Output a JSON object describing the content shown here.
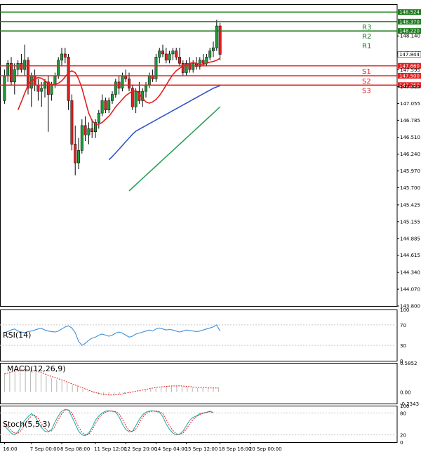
{
  "chart_data": [
    {
      "type": "candlestick",
      "title": "",
      "indicators": [
        "MA fast (red)",
        "MA mid (blue)",
        "MA slow (green)"
      ],
      "ylim": [
        143.8,
        148.65
      ],
      "y_ticks": [
        "148.140",
        "147.865",
        "147.595",
        "147.325",
        "147.055",
        "146.785",
        "146.510",
        "146.240",
        "145.970",
        "145.700",
        "145.425",
        "145.155",
        "144.885",
        "144.615",
        "144.340",
        "144.070",
        "143.800"
      ],
      "x_ticks": [
        "16:00",
        "7 Sep 00:00",
        "8 Sep 08:00",
        "11 Sep 12:00",
        "12 Sep 20:00",
        "14 Sep 04:00",
        "15 Sep 12:00",
        "18 Sep 16:00",
        "20 Sep 00:00"
      ],
      "x_tick_index": [
        0,
        8,
        17,
        27,
        36,
        45,
        54,
        64,
        73
      ],
      "current_price": "147.844",
      "levels": [
        {
          "name": "R3",
          "value": 148.37,
          "label": "148.370",
          "color": "#1a7a1a",
          "show_name": true
        },
        {
          "name": "R2",
          "value": 148.22,
          "label": "148.220",
          "color": "#1a7a1a",
          "show_name": true
        },
        {
          "name": "R1",
          "value": 148.524,
          "label": "148.524",
          "color": "#1a7a1a",
          "show_name": false
        },
        {
          "name": "S1",
          "value": 147.66,
          "label": "147.660",
          "color": "#e02020",
          "show_name": true
        },
        {
          "name": "S2",
          "value": 147.5,
          "label": "147.500",
          "color": "#e02020",
          "show_name": true
        },
        {
          "name": "S3",
          "value": 147.35,
          "label": "147.350",
          "color": "#e02020",
          "show_name": true
        }
      ],
      "level_name_order": [
        "R3",
        "R2",
        "R1",
        "S1",
        "S2",
        "S3"
      ],
      "candles": [
        [
          147.1,
          147.6,
          147.05,
          147.5
        ],
        [
          147.5,
          147.75,
          147.4,
          147.7
        ],
        [
          147.7,
          147.8,
          147.35,
          147.4
        ],
        [
          147.4,
          147.7,
          147.2,
          147.6
        ],
        [
          147.6,
          147.75,
          147.5,
          147.7
        ],
        [
          147.7,
          147.85,
          147.55,
          147.6
        ],
        [
          147.6,
          148.0,
          147.5,
          147.75
        ],
        [
          147.75,
          147.8,
          147.2,
          147.3
        ],
        [
          147.3,
          147.55,
          147.0,
          147.5
        ],
        [
          147.5,
          147.6,
          147.25,
          147.35
        ],
        [
          147.35,
          147.45,
          147.1,
          147.25
        ],
        [
          147.25,
          147.4,
          147.0,
          147.3
        ],
        [
          147.3,
          147.45,
          147.15,
          147.4
        ],
        [
          147.4,
          147.5,
          146.6,
          147.2
        ],
        [
          147.2,
          147.4,
          147.1,
          147.35
        ],
        [
          147.35,
          147.55,
          147.3,
          147.5
        ],
        [
          147.5,
          147.8,
          147.45,
          147.75
        ],
        [
          147.75,
          147.95,
          147.65,
          147.85
        ],
        [
          147.85,
          147.95,
          147.7,
          147.8
        ],
        [
          147.8,
          147.85,
          146.95,
          147.1
        ],
        [
          147.1,
          147.2,
          146.3,
          146.4
        ],
        [
          146.4,
          146.7,
          145.9,
          146.1
        ],
        [
          146.1,
          146.5,
          146.0,
          146.3
        ],
        [
          146.3,
          146.8,
          146.25,
          146.7
        ],
        [
          146.7,
          146.85,
          146.45,
          146.55
        ],
        [
          146.55,
          146.75,
          146.4,
          146.65
        ],
        [
          146.65,
          146.8,
          146.5,
          146.6
        ],
        [
          146.6,
          146.8,
          146.5,
          146.75
        ],
        [
          146.75,
          146.95,
          146.65,
          146.9
        ],
        [
          146.9,
          147.2,
          146.85,
          147.1
        ],
        [
          147.1,
          147.15,
          146.9,
          146.95
        ],
        [
          146.95,
          147.15,
          146.9,
          147.1
        ],
        [
          147.1,
          147.25,
          147.05,
          147.2
        ],
        [
          147.2,
          147.45,
          147.15,
          147.4
        ],
        [
          147.4,
          147.5,
          147.2,
          147.3
        ],
        [
          147.3,
          147.55,
          147.25,
          147.5
        ],
        [
          147.5,
          147.6,
          147.4,
          147.45
        ],
        [
          147.45,
          147.55,
          147.25,
          147.3
        ],
        [
          147.3,
          147.35,
          146.95,
          147.0
        ],
        [
          147.0,
          147.3,
          146.9,
          147.25
        ],
        [
          147.25,
          147.4,
          147.05,
          147.1
        ],
        [
          147.1,
          147.3,
          147.0,
          147.25
        ],
        [
          147.25,
          147.4,
          147.15,
          147.35
        ],
        [
          147.35,
          147.55,
          147.3,
          147.5
        ],
        [
          147.5,
          147.6,
          147.4,
          147.45
        ],
        [
          147.45,
          147.85,
          147.4,
          147.8
        ],
        [
          147.8,
          147.95,
          147.7,
          147.9
        ],
        [
          147.9,
          148.0,
          147.8,
          147.85
        ],
        [
          147.85,
          147.95,
          147.7,
          147.75
        ],
        [
          147.75,
          147.9,
          147.7,
          147.85
        ],
        [
          147.85,
          147.95,
          147.75,
          147.9
        ],
        [
          147.9,
          147.95,
          147.75,
          147.8
        ],
        [
          147.8,
          147.95,
          147.65,
          147.7
        ],
        [
          147.7,
          147.75,
          147.5,
          147.55
        ],
        [
          147.55,
          147.75,
          147.5,
          147.7
        ],
        [
          147.7,
          147.8,
          147.55,
          147.6
        ],
        [
          147.6,
          147.75,
          147.55,
          147.7
        ],
        [
          147.7,
          147.8,
          147.6,
          147.65
        ],
        [
          147.65,
          147.8,
          147.6,
          147.75
        ],
        [
          147.75,
          147.85,
          147.65,
          147.7
        ],
        [
          147.7,
          147.85,
          147.65,
          147.8
        ],
        [
          147.8,
          147.95,
          147.75,
          147.9
        ],
        [
          147.9,
          148.05,
          147.8,
          147.95
        ],
        [
          147.95,
          148.4,
          147.9,
          148.3
        ],
        [
          148.3,
          148.35,
          147.75,
          147.844
        ]
      ],
      "ma_fast": [
        146.95,
        147.08,
        147.22,
        147.35,
        147.42,
        147.45,
        147.47,
        147.46,
        147.42,
        147.38,
        147.36,
        147.36,
        147.38,
        147.42,
        147.48,
        147.55,
        147.58,
        147.55,
        147.45,
        147.3,
        147.1,
        146.9,
        146.78,
        146.72,
        146.72,
        146.75,
        146.8,
        146.85,
        146.92,
        147.0,
        147.06,
        147.12,
        147.18,
        147.22,
        147.25,
        147.26,
        147.22,
        147.14,
        147.08,
        147.06,
        147.08,
        147.12,
        147.18,
        147.26,
        147.35,
        147.44,
        147.52,
        147.58,
        147.62,
        147.66,
        147.68,
        147.7,
        147.71,
        147.7,
        147.68,
        147.68,
        147.7,
        147.72,
        147.73,
        147.75,
        147.78
      ],
      "ma_mid": [
        146.15,
        146.2,
        146.26,
        146.32,
        146.38,
        146.44,
        146.5,
        146.56,
        146.61,
        146.64,
        146.67,
        146.7,
        146.73,
        146.76,
        146.79,
        146.82,
        146.85,
        146.88,
        146.91,
        146.94,
        146.97,
        147.0,
        147.03,
        147.06,
        147.09,
        147.12,
        147.15,
        147.18,
        147.21,
        147.24,
        147.27,
        147.3,
        147.32,
        147.34
      ],
      "ma_slow": [
        145.65,
        145.7,
        145.75,
        145.8,
        145.85,
        145.9,
        145.95,
        146.0,
        146.05,
        146.1,
        146.15,
        146.2,
        146.25,
        146.3,
        146.35,
        146.4,
        146.45,
        146.5,
        146.55,
        146.6,
        146.65,
        146.7,
        146.75,
        146.8,
        146.85,
        146.9,
        146.95,
        147.0
      ]
    },
    {
      "type": "line",
      "name": "RSI(14)",
      "ylim": [
        0,
        100
      ],
      "y_ticks": [
        "100",
        "70",
        "30",
        "0"
      ],
      "values": [
        55,
        57,
        60,
        62,
        58,
        56,
        55,
        57,
        58,
        60,
        62,
        63,
        60,
        58,
        57,
        56,
        58,
        62,
        66,
        68,
        64,
        55,
        38,
        30,
        34,
        40,
        44,
        46,
        50,
        52,
        50,
        48,
        50,
        54,
        56,
        54,
        50,
        46,
        48,
        52,
        54,
        56,
        58,
        60,
        58,
        62,
        64,
        62,
        60,
        61,
        60,
        58,
        56,
        58,
        60,
        59,
        58,
        57,
        58,
        60,
        62,
        64,
        66,
        70,
        58
      ]
    },
    {
      "type": "bar",
      "name": "MACD(12,26,9)",
      "ylim": [
        -0.2343,
        0.5852
      ],
      "y_ticks": [
        "0.5852",
        "0.00",
        "-0.2343"
      ],
      "histogram": [
        0.38,
        0.42,
        0.45,
        0.46,
        0.45,
        0.43,
        0.4,
        0.36,
        0.32,
        0.28,
        0.25,
        0.22,
        0.18,
        0.14,
        0.1,
        0.06,
        0.02,
        -0.02,
        -0.05,
        -0.07,
        -0.08,
        -0.07,
        -0.06,
        -0.04,
        -0.02,
        0.0,
        0.02,
        0.04,
        0.06,
        0.08,
        0.1,
        0.11,
        0.12,
        0.12,
        0.11,
        0.1,
        0.09,
        0.08,
        0.08,
        0.08,
        0.08,
        0.08
      ],
      "signal": [
        0.36,
        0.39,
        0.42,
        0.44,
        0.45,
        0.44,
        0.42,
        0.39,
        0.35,
        0.31,
        0.28,
        0.24,
        0.2,
        0.16,
        0.12,
        0.08,
        0.04,
        0.0,
        -0.03,
        -0.05,
        -0.06,
        -0.06,
        -0.05,
        -0.03,
        -0.01,
        0.01,
        0.03,
        0.05,
        0.07,
        0.09,
        0.1,
        0.11,
        0.12,
        0.12,
        0.12,
        0.11,
        0.1,
        0.09,
        0.09,
        0.08,
        0.08,
        0.08
      ]
    },
    {
      "type": "line",
      "name": "Stoch(5,5,3)",
      "ylim": [
        0,
        100
      ],
      "y_ticks": [
        "100",
        "80",
        "20",
        "0"
      ],
      "k": [
        45,
        35,
        25,
        20,
        28,
        45,
        60,
        70,
        78,
        72,
        55,
        40,
        30,
        28,
        35,
        55,
        72,
        85,
        90,
        88,
        70,
        50,
        30,
        20,
        18,
        25,
        40,
        60,
        72,
        80,
        85,
        86,
        85,
        82,
        70,
        50,
        35,
        28,
        30,
        45,
        62,
        75,
        82,
        85,
        86,
        84,
        82,
        70,
        50,
        35,
        25,
        20,
        22,
        30,
        45,
        60,
        68,
        72,
        78,
        80,
        82,
        85,
        80
      ],
      "d": [
        50,
        42,
        32,
        25,
        24,
        33,
        48,
        62,
        72,
        74,
        65,
        50,
        38,
        30,
        31,
        43,
        62,
        78,
        87,
        89,
        80,
        62,
        42,
        27,
        20,
        21,
        33,
        50,
        66,
        76,
        82,
        85,
        85,
        84,
        78,
        63,
        45,
        32,
        29,
        36,
        52,
        68,
        78,
        83,
        85,
        85,
        84,
        78,
        62,
        45,
        32,
        23,
        21,
        25,
        36,
        50,
        62,
        70,
        75,
        79,
        81,
        83,
        82
      ]
    }
  ]
}
